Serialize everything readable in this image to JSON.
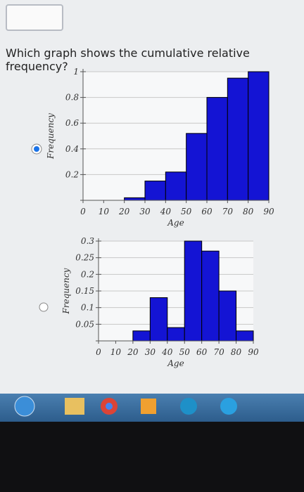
{
  "question": "Which graph shows the cumulative relative frequency?",
  "chart_data": [
    {
      "type": "histogram",
      "xlabel": "Age",
      "ylabel": "Frequency",
      "color": "#1414d4",
      "grid": true,
      "bins": [
        0,
        10,
        20,
        30,
        40,
        50,
        60,
        70,
        80,
        90
      ],
      "values": [
        0,
        0,
        0.02,
        0.15,
        0.22,
        0.52,
        0.8,
        0.95,
        1
      ],
      "xlim": [
        0,
        90
      ],
      "xticks": [
        0,
        10,
        20,
        30,
        40,
        50,
        60,
        70,
        80,
        90
      ],
      "ylim": [
        0,
        1
      ],
      "yticks": [
        0.2,
        0.4,
        0.6,
        0.8,
        1
      ]
    },
    {
      "type": "histogram",
      "xlabel": "Age",
      "ylabel": "Frequency",
      "color": "#1414d4",
      "grid": true,
      "bins": [
        0,
        10,
        20,
        30,
        40,
        50,
        60,
        70,
        80,
        90
      ],
      "values": [
        0,
        0,
        0.03,
        0.13,
        0.04,
        0.3,
        0.27,
        0.15,
        0.03
      ],
      "xlim": [
        0,
        90
      ],
      "xticks": [
        0,
        10,
        20,
        30,
        40,
        50,
        60,
        70,
        80,
        90
      ],
      "ylim": [
        0,
        0.3
      ],
      "yticks": [
        0.05,
        0.1,
        0.15,
        0.2,
        0.25,
        0.3
      ]
    }
  ]
}
